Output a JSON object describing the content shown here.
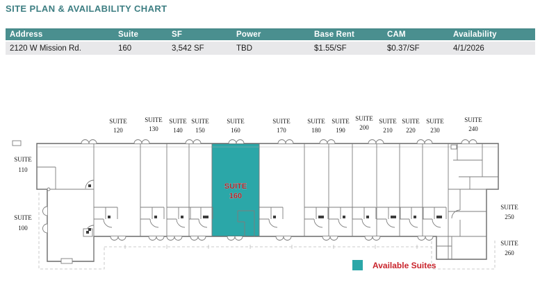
{
  "title": "SITE PLAN & AVAILABILITY CHART",
  "table": {
    "headers": [
      "Address",
      "Suite",
      "SF",
      "Power",
      "Base Rent",
      "CAM",
      "Availability"
    ],
    "row": {
      "address": "2120 W Mission Rd.",
      "suite": "160",
      "sf": "3,542 SF",
      "power": "TBD",
      "base_rent": "$1.55/SF",
      "cam": "$0.37/SF",
      "availability": "4/1/2026"
    }
  },
  "site_plan": {
    "top_suites": [
      {
        "name": "SUITE",
        "number": "120"
      },
      {
        "name": "SUITE",
        "number": "130"
      },
      {
        "name": "SUITE",
        "number": "140"
      },
      {
        "name": "SUITE",
        "number": "150"
      },
      {
        "name": "SUITE",
        "number": "160"
      },
      {
        "name": "SUITE",
        "number": "170"
      },
      {
        "name": "SUITE",
        "number": "180"
      },
      {
        "name": "SUITE",
        "number": "190"
      },
      {
        "name": "SUITE",
        "number": "200"
      },
      {
        "name": "SUITE",
        "number": "210"
      },
      {
        "name": "SUITE",
        "number": "220"
      },
      {
        "name": "SUITE",
        "number": "230"
      },
      {
        "name": "SUITE",
        "number": "240"
      }
    ],
    "left_suites": [
      {
        "name": "SUITE",
        "number": "110"
      },
      {
        "name": "SUITE",
        "number": "100"
      }
    ],
    "right_suites": [
      {
        "name": "SUITE",
        "number": "250"
      },
      {
        "name": "SUITE",
        "number": "260"
      }
    ],
    "highlighted_suite": {
      "name": "SUITE",
      "number": "160"
    },
    "legend": {
      "label": "Available Suites",
      "swatch_color": "#2BA7A8"
    }
  },
  "colors": {
    "title_teal": "#3D7E82",
    "table_header_bg": "#4A8F8F",
    "table_row_bg": "#E8E8EA",
    "available_teal": "#2BA7A8",
    "highlight_text_red": "#A8262B",
    "legend_red": "#C9242C"
  }
}
